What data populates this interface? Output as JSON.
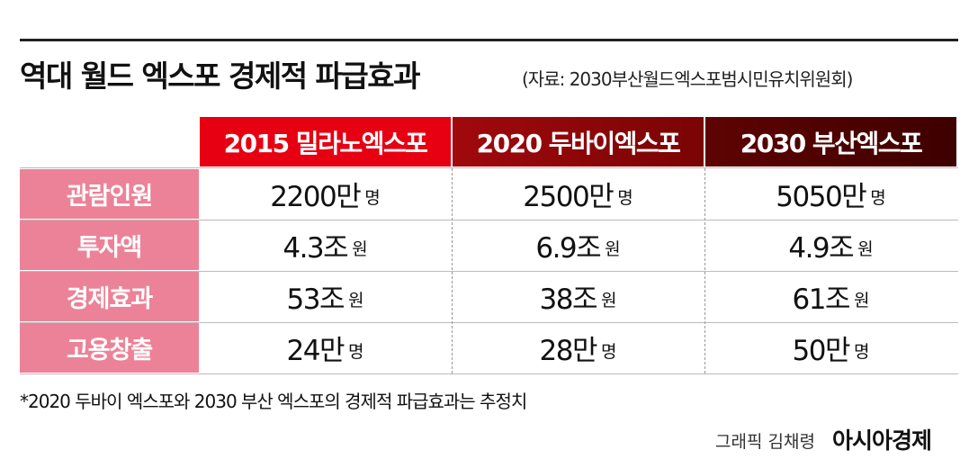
{
  "header": {
    "title": "역대 월드 엑스포 경제적 파급효과",
    "source": "(자료: 2030부산월드엑스포범시민유치위원회)"
  },
  "table": {
    "columns": [
      "2015 밀라노엑스포",
      "2020 두바이엑스포",
      "2030 부산엑스포"
    ],
    "rows": [
      {
        "label": "관람인원",
        "cells": [
          {
            "amount": "2200만",
            "unit": "명"
          },
          {
            "amount": "2500만",
            "unit": "명"
          },
          {
            "amount": "5050만",
            "unit": "명"
          }
        ]
      },
      {
        "label": "투자액",
        "cells": [
          {
            "amount": "4.3조",
            "unit": "원"
          },
          {
            "amount": "6.9조",
            "unit": "원"
          },
          {
            "amount": "4.9조",
            "unit": "원"
          }
        ]
      },
      {
        "label": "경제효과",
        "cells": [
          {
            "amount": "53조",
            "unit": "원"
          },
          {
            "amount": "38조",
            "unit": "원"
          },
          {
            "amount": "61조",
            "unit": "원"
          }
        ]
      },
      {
        "label": "고용창출",
        "cells": [
          {
            "amount": "24만",
            "unit": "명"
          },
          {
            "amount": "28만",
            "unit": "명"
          },
          {
            "amount": "50만",
            "unit": "명"
          }
        ]
      }
    ]
  },
  "footnote": "*2020 두바이 엑스포와 2030 부산 엑스포의 경제적 파급효과는 추정치",
  "credit": {
    "graphic": "그래픽 김채령",
    "logo": "아시아경제"
  }
}
